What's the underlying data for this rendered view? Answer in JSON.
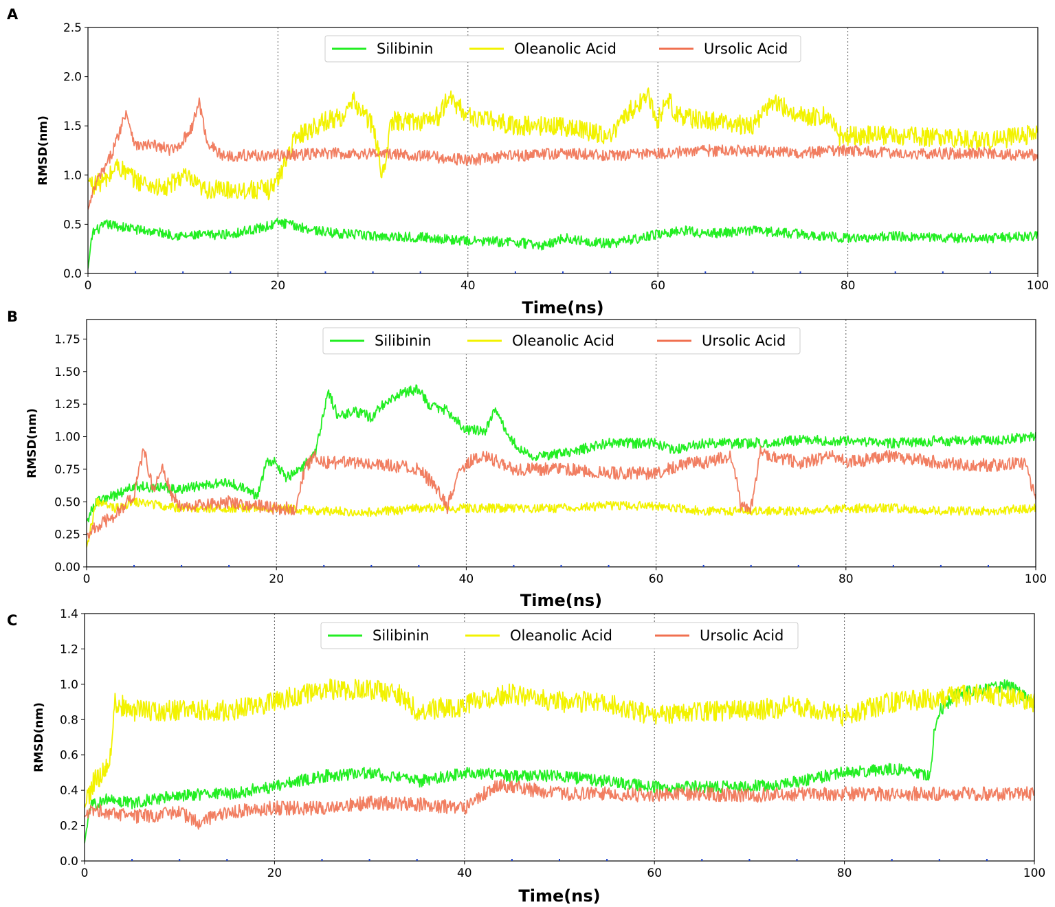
{
  "chart_data": [
    {
      "type": "line",
      "panel_label": "A",
      "xlabel": "Time(ns)",
      "ylabel": "RMSD(nm)",
      "xlim": [
        0,
        100
      ],
      "ylim": [
        0,
        2.5
      ],
      "xticks": [
        0,
        20,
        40,
        60,
        80,
        100
      ],
      "xtick_labels": [
        "0",
        "20",
        "40",
        "60",
        "80",
        "100"
      ],
      "yticks": [
        0,
        0.5,
        1.0,
        1.5,
        2.0,
        2.5
      ],
      "ytick_labels": [
        "0.0",
        "0.5",
        "1.0",
        "1.5",
        "2.0",
        "2.5"
      ],
      "gridlines_x": [
        20,
        40,
        60,
        80
      ],
      "legend_position": "upper-center",
      "series": [
        {
          "name": "Silibinin",
          "color": "#22ee22",
          "noise": 0.05,
          "x": [
            0,
            0.5,
            2,
            5,
            10,
            15,
            19,
            20,
            22,
            25,
            30,
            35,
            40,
            45,
            48,
            50,
            55,
            60,
            63,
            65,
            70,
            75,
            80,
            85,
            90,
            95,
            100
          ],
          "values": [
            0.05,
            0.42,
            0.5,
            0.45,
            0.38,
            0.4,
            0.48,
            0.52,
            0.48,
            0.42,
            0.38,
            0.37,
            0.33,
            0.32,
            0.28,
            0.36,
            0.3,
            0.4,
            0.44,
            0.4,
            0.44,
            0.4,
            0.36,
            0.38,
            0.36,
            0.36,
            0.38
          ]
        },
        {
          "name": "Oleanolic Acid",
          "color": "#f2f200",
          "noise": 0.1,
          "x": [
            0,
            0.5,
            2,
            3,
            5,
            8,
            10,
            12,
            15,
            19,
            20,
            21,
            22,
            25,
            27,
            28,
            30,
            31,
            32,
            35,
            37,
            38,
            40,
            45,
            50,
            55,
            57,
            59,
            60,
            61,
            62,
            65,
            70,
            72,
            75,
            78,
            79,
            80,
            85,
            90,
            95,
            100
          ],
          "values": [
            0.95,
            0.9,
            0.95,
            1.1,
            0.95,
            0.85,
            1.0,
            0.85,
            0.85,
            0.85,
            0.95,
            1.2,
            1.4,
            1.55,
            1.6,
            1.75,
            1.5,
            1.0,
            1.55,
            1.55,
            1.6,
            1.8,
            1.6,
            1.5,
            1.5,
            1.4,
            1.65,
            1.8,
            1.55,
            1.8,
            1.6,
            1.55,
            1.5,
            1.75,
            1.6,
            1.6,
            1.4,
            1.4,
            1.4,
            1.38,
            1.35,
            1.42
          ]
        },
        {
          "name": "Ursolic Acid",
          "color": "#f07050",
          "noise": 0.06,
          "x": [
            0,
            1,
            2,
            3,
            4,
            5,
            7,
            9,
            10,
            11,
            11.7,
            12.5,
            14,
            20,
            25,
            30,
            35,
            40,
            45,
            50,
            55,
            60,
            65,
            70,
            75,
            80,
            85,
            90,
            95,
            100
          ],
          "values": [
            0.65,
            0.95,
            1.1,
            1.35,
            1.65,
            1.3,
            1.3,
            1.25,
            1.35,
            1.5,
            1.75,
            1.35,
            1.2,
            1.2,
            1.22,
            1.22,
            1.2,
            1.15,
            1.2,
            1.22,
            1.2,
            1.22,
            1.25,
            1.25,
            1.22,
            1.25,
            1.22,
            1.22,
            1.22,
            1.2
          ]
        }
      ]
    },
    {
      "type": "line",
      "panel_label": "B",
      "xlabel": "Time(ns)",
      "ylabel": "RMSD(nm)",
      "xlim": [
        0,
        100
      ],
      "ylim": [
        0,
        1.9
      ],
      "xticks": [
        0,
        20,
        40,
        60,
        80,
        100
      ],
      "xtick_labels": [
        "0",
        "20",
        "40",
        "60",
        "80",
        "100"
      ],
      "yticks": [
        0,
        0.25,
        0.5,
        0.75,
        1.0,
        1.25,
        1.5,
        1.75
      ],
      "ytick_labels": [
        "0.00",
        "0.25",
        "0.50",
        "0.75",
        "1.00",
        "1.25",
        "1.50",
        "1.75"
      ],
      "gridlines_x": [
        20,
        40,
        60,
        80
      ],
      "legend_position": "upper-center",
      "series": [
        {
          "name": "Silibinin",
          "color": "#22ee22",
          "noise": 0.04,
          "x": [
            0,
            1,
            3,
            5,
            10,
            15,
            18,
            19,
            20,
            21,
            22,
            24,
            25.5,
            26.5,
            28,
            30,
            32,
            34,
            35,
            36,
            38,
            40,
            42,
            43,
            45,
            47,
            50,
            55,
            60,
            62,
            65,
            70,
            75,
            80,
            85,
            90,
            95,
            100
          ],
          "values": [
            0.35,
            0.5,
            0.55,
            0.62,
            0.6,
            0.65,
            0.55,
            0.82,
            0.8,
            0.68,
            0.72,
            0.85,
            1.35,
            1.15,
            1.2,
            1.15,
            1.3,
            1.35,
            1.37,
            1.25,
            1.2,
            1.05,
            1.05,
            1.2,
            0.95,
            0.85,
            0.87,
            0.95,
            0.95,
            0.9,
            0.95,
            0.95,
            0.97,
            0.97,
            0.95,
            0.97,
            0.97,
            1.0
          ]
        },
        {
          "name": "Oleanolic Acid",
          "color": "#f2f200",
          "noise": 0.035,
          "x": [
            0,
            1,
            3,
            5,
            10,
            15,
            20,
            25,
            30,
            35,
            40,
            45,
            50,
            55,
            60,
            65,
            70,
            75,
            80,
            85,
            90,
            95,
            100
          ],
          "values": [
            0.15,
            0.5,
            0.45,
            0.5,
            0.45,
            0.45,
            0.45,
            0.43,
            0.42,
            0.45,
            0.45,
            0.45,
            0.45,
            0.47,
            0.47,
            0.43,
            0.43,
            0.43,
            0.45,
            0.45,
            0.43,
            0.43,
            0.45
          ]
        },
        {
          "name": "Ursolic Acid",
          "color": "#f07050",
          "noise": 0.05,
          "x": [
            0,
            1,
            3,
            5,
            6,
            7,
            8,
            9,
            10,
            15,
            20,
            22,
            23,
            24,
            25,
            30,
            35,
            37,
            38,
            39,
            40,
            42,
            45,
            50,
            55,
            60,
            63,
            65,
            68,
            69,
            70,
            71,
            75,
            79,
            80,
            85,
            90,
            95,
            99,
            100
          ],
          "values": [
            0.25,
            0.3,
            0.4,
            0.55,
            0.9,
            0.6,
            0.75,
            0.55,
            0.45,
            0.5,
            0.45,
            0.45,
            0.75,
            0.85,
            0.8,
            0.8,
            0.75,
            0.6,
            0.45,
            0.7,
            0.8,
            0.85,
            0.75,
            0.75,
            0.72,
            0.72,
            0.8,
            0.8,
            0.85,
            0.45,
            0.45,
            0.88,
            0.8,
            0.85,
            0.8,
            0.85,
            0.8,
            0.78,
            0.8,
            0.5
          ]
        }
      ]
    },
    {
      "type": "line",
      "panel_label": "C",
      "xlabel": "Time(ns)",
      "ylabel": "RMSD(nm)",
      "xlim": [
        0,
        100
      ],
      "ylim": [
        0,
        1.4
      ],
      "xticks": [
        0,
        20,
        40,
        60,
        80,
        100
      ],
      "xtick_labels": [
        "0",
        "20",
        "40",
        "60",
        "80",
        "100"
      ],
      "yticks": [
        0,
        0.2,
        0.4,
        0.6,
        0.8,
        1.0,
        1.2,
        1.4
      ],
      "ytick_labels": [
        "0.0",
        "0.2",
        "0.4",
        "0.6",
        "0.8",
        "1.0",
        "1.2",
        "1.4"
      ],
      "gridlines_x": [
        20,
        40,
        60,
        80
      ],
      "legend_position": "upper-center",
      "series": [
        {
          "name": "Silibinin",
          "color": "#22ee22",
          "noise": 0.035,
          "x": [
            0,
            0.5,
            2,
            5,
            10,
            15,
            20,
            25,
            30,
            35,
            40,
            45,
            50,
            55,
            60,
            65,
            70,
            75,
            80,
            85,
            88,
            89,
            89.5,
            90,
            92,
            95,
            97,
            100
          ],
          "values": [
            0.1,
            0.3,
            0.35,
            0.33,
            0.37,
            0.38,
            0.42,
            0.48,
            0.5,
            0.45,
            0.5,
            0.48,
            0.48,
            0.45,
            0.42,
            0.42,
            0.42,
            0.45,
            0.5,
            0.52,
            0.5,
            0.48,
            0.75,
            0.85,
            0.95,
            0.97,
            1.0,
            0.9
          ]
        },
        {
          "name": "Oleanolic Acid",
          "color": "#f2f200",
          "noise": 0.06,
          "x": [
            0,
            1,
            2,
            2.8,
            3.2,
            5,
            10,
            15,
            20,
            25,
            30,
            33,
            35,
            40,
            45,
            50,
            55,
            60,
            65,
            70,
            75,
            80,
            85,
            90,
            95,
            100
          ],
          "values": [
            0.3,
            0.45,
            0.5,
            0.6,
            0.9,
            0.85,
            0.85,
            0.85,
            0.9,
            0.97,
            0.97,
            0.95,
            0.85,
            0.88,
            0.95,
            0.9,
            0.9,
            0.82,
            0.85,
            0.85,
            0.88,
            0.82,
            0.9,
            0.92,
            0.95,
            0.9
          ]
        },
        {
          "name": "Ursolic Acid",
          "color": "#f07050",
          "noise": 0.04,
          "x": [
            0,
            1,
            2,
            5,
            10,
            12,
            15,
            20,
            25,
            30,
            35,
            40,
            43,
            45,
            50,
            55,
            60,
            65,
            70,
            75,
            80,
            85,
            90,
            95,
            100
          ],
          "values": [
            0.25,
            0.3,
            0.28,
            0.25,
            0.27,
            0.22,
            0.28,
            0.3,
            0.3,
            0.33,
            0.32,
            0.3,
            0.42,
            0.42,
            0.38,
            0.38,
            0.37,
            0.38,
            0.37,
            0.38,
            0.38,
            0.38,
            0.38,
            0.38,
            0.38
          ]
        }
      ]
    }
  ]
}
